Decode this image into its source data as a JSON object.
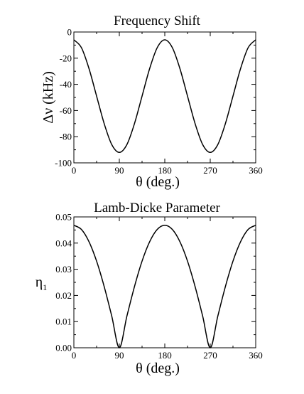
{
  "chart_data": [
    {
      "type": "line",
      "title": "Frequency Shift",
      "xlabel": "θ (deg.)",
      "ylabel": "Δν (kHz)",
      "xlim": [
        0,
        360
      ],
      "ylim": [
        -100,
        0
      ],
      "xticks": [
        "0",
        "90",
        "180",
        "270",
        "360"
      ],
      "yticks": [
        "0",
        "-20",
        "-40",
        "-60",
        "-80",
        "-100"
      ],
      "grid": false,
      "legend": "none",
      "series": [
        {
          "x": [
            0,
            15,
            30,
            45,
            60,
            75,
            90,
            105,
            120,
            135,
            150,
            165,
            180,
            195,
            210,
            225,
            240,
            255,
            270,
            285,
            300,
            315,
            330,
            345,
            360
          ],
          "y": [
            -6,
            -12,
            -28,
            -49,
            -70,
            -86,
            -92,
            -86,
            -70,
            -49,
            -28,
            -12,
            -6,
            -12,
            -28,
            -49,
            -70,
            -86,
            -92,
            -86,
            -70,
            -49,
            -28,
            -12,
            -6
          ]
        }
      ]
    },
    {
      "type": "line",
      "title": "Lamb-Dicke Parameter",
      "xlabel": "θ (deg.)",
      "ylabel": "η",
      "ylabel_sub": "1",
      "xlim": [
        0,
        360
      ],
      "ylim": [
        0,
        0.05
      ],
      "xticks": [
        "0",
        "90",
        "180",
        "270",
        "360"
      ],
      "yticks": [
        "0.05",
        "0.04",
        "0.03",
        "0.02",
        "0.01",
        "0.00"
      ],
      "grid": false,
      "legend": "none",
      "series": [
        {
          "x": [
            0,
            15,
            30,
            45,
            60,
            75,
            90,
            105,
            120,
            135,
            150,
            165,
            180,
            195,
            210,
            225,
            240,
            255,
            270,
            285,
            300,
            315,
            330,
            345,
            360
          ],
          "y": [
            0.0468,
            0.0452,
            0.0405,
            0.0331,
            0.0234,
            0.0121,
            0.0,
            0.0121,
            0.0234,
            0.0331,
            0.0405,
            0.0452,
            0.0468,
            0.0452,
            0.0405,
            0.0331,
            0.0234,
            0.0121,
            0.0,
            0.0121,
            0.0234,
            0.0331,
            0.0405,
            0.0452,
            0.0468
          ]
        }
      ]
    }
  ]
}
